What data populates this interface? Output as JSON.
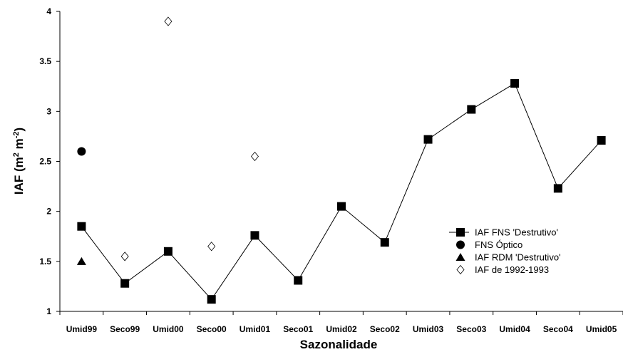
{
  "chart_data": {
    "type": "scatter",
    "title": "",
    "xlabel": "Sazonalidade",
    "ylabel_main": "IAF (m",
    "ylabel_sup1": "2",
    "ylabel_mid": " m",
    "ylabel_sup2": "-2",
    "ylabel_end": ")",
    "categories": [
      "Umid99",
      "Seco99",
      "Umid00",
      "Seco00",
      "Umid01",
      "Seco01",
      "Umid02",
      "Seco02",
      "Umid03",
      "Seco03",
      "Umid04",
      "Seco04",
      "Umid05"
    ],
    "ylim": [
      1,
      4
    ],
    "yticks": [
      "1",
      "1.5",
      "2",
      "2.5",
      "3",
      "3.5",
      "4"
    ],
    "grid": false,
    "legend_position": "lower-right",
    "series": [
      {
        "name": "IAF FNS 'Destrutivo'",
        "marker": "square",
        "line": true,
        "color": "#000000",
        "values": [
          1.85,
          1.28,
          1.6,
          1.12,
          1.76,
          1.31,
          2.05,
          1.69,
          2.72,
          3.02,
          3.28,
          2.23,
          2.71
        ]
      },
      {
        "name": "FNS Óptico",
        "marker": "circle",
        "line": false,
        "color": "#000000",
        "values": [
          2.6,
          null,
          null,
          null,
          null,
          null,
          null,
          null,
          null,
          null,
          null,
          null,
          null
        ]
      },
      {
        "name": "IAF RDM 'Destrutivo'",
        "marker": "triangle",
        "line": false,
        "color": "#000000",
        "values": [
          1.5,
          null,
          null,
          null,
          null,
          null,
          null,
          null,
          null,
          null,
          null,
          null,
          null
        ]
      },
      {
        "name": "IAF de 1992-1993",
        "marker": "diamond-open",
        "line": false,
        "color": "#000000",
        "values": [
          null,
          1.55,
          3.9,
          1.65,
          2.55,
          null,
          null,
          null,
          null,
          null,
          null,
          null,
          null
        ]
      }
    ]
  }
}
